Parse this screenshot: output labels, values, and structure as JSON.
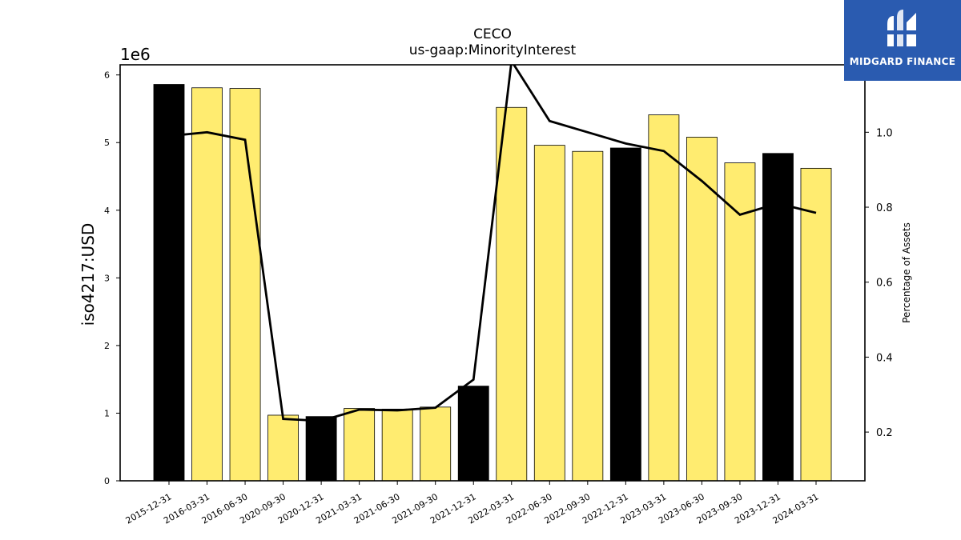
{
  "logo": {
    "text": "MIDGARD FINANCE",
    "color": "#2a5bb0",
    "icon": "midgard-logo-icon"
  },
  "chart_data": {
    "type": "bar",
    "title": "CECO",
    "subtitle": "us-gaap:MinorityInterest",
    "ylabel": "iso4217:USD",
    "ylabel_right": "Percentage of Assets",
    "y_offset_label": "1e6",
    "ylim": [
      0,
      6150000
    ],
    "ylim_right": [
      0.07,
      1.18
    ],
    "yticks": [
      0,
      1,
      2,
      3,
      4,
      5,
      6
    ],
    "yticks_right": [
      "0.2",
      "0.4",
      "0.6",
      "0.8",
      "1.0"
    ],
    "yticks_right_values": [
      0.2,
      0.4,
      0.6,
      0.8,
      1.0
    ],
    "categories": [
      "2015-12-31",
      "2016-03-31",
      "2016-06-30",
      "2020-09-30",
      "2020-12-31",
      "2021-03-31",
      "2021-06-30",
      "2021-09-30",
      "2021-12-31",
      "2022-03-31",
      "2022-06-30",
      "2022-09-30",
      "2022-12-31",
      "2023-03-31",
      "2023-06-30",
      "2023-09-30",
      "2023-12-31",
      "2024-03-31"
    ],
    "series": [
      {
        "type": "bar",
        "values": [
          5860000,
          5810000,
          5800000,
          970000,
          950000,
          1070000,
          1060000,
          1090000,
          1400000,
          5520000,
          4960000,
          4870000,
          4920000,
          5410000,
          5080000,
          4700000,
          4840000,
          4620000
        ],
        "colors": [
          "#000000",
          "#ffec70",
          "#ffec70",
          "#ffec70",
          "#000000",
          "#ffec70",
          "#ffec70",
          "#ffec70",
          "#000000",
          "#ffec70",
          "#ffec70",
          "#ffec70",
          "#000000",
          "#ffec70",
          "#ffec70",
          "#ffec70",
          "#000000",
          "#ffec70"
        ]
      },
      {
        "type": "line",
        "axis": "right",
        "values": [
          0.99,
          1.0,
          0.98,
          0.235,
          0.23,
          0.26,
          0.258,
          0.265,
          0.34,
          1.19,
          1.03,
          1.0,
          0.97,
          0.95,
          0.87,
          0.78,
          0.81,
          0.785
        ],
        "color": "#000000"
      }
    ],
    "grid": false
  }
}
